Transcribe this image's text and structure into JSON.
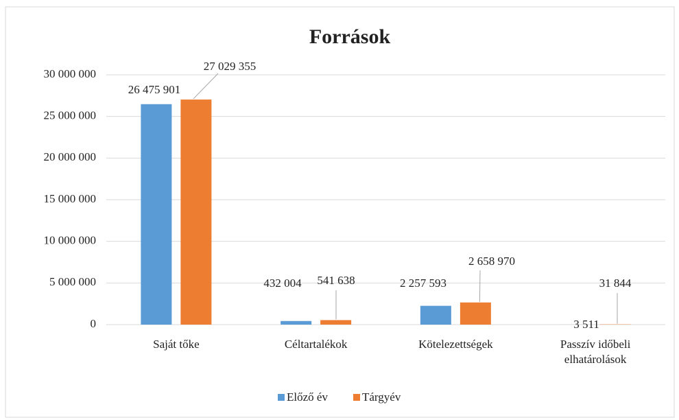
{
  "chart_data": {
    "type": "bar",
    "title": "Források",
    "categories": [
      "Saját tőke",
      "Céltartalékok",
      "Kötelezettségek",
      "Passzív időbeli elhatárolások"
    ],
    "series": [
      {
        "name": "Előző év",
        "color": "#5b9bd5",
        "values": [
          26475901,
          432004,
          2257593,
          3511
        ],
        "value_labels": [
          "26 475 901",
          "432 004",
          "2 257 593",
          "3 511"
        ]
      },
      {
        "name": "Tárgyév",
        "color": "#ed7d31",
        "values": [
          27029355,
          541638,
          2658970,
          31844
        ],
        "value_labels": [
          "27 029 355",
          "541 638",
          "2 658 970",
          "31 844"
        ]
      }
    ],
    "ylim": [
      0,
      30000000
    ],
    "yticks": [
      0,
      {
        "value": 5000000,
        "label": "5 000 000"
      },
      {
        "value": 10000000,
        "label": "10 000 000"
      },
      {
        "value": 15000000,
        "label": "15 000 000"
      },
      {
        "value": 20000000,
        "label": "20 000 000"
      },
      {
        "value": 25000000,
        "label": "25 000 000"
      },
      {
        "value": 30000000,
        "label": "30 000 000"
      }
    ],
    "grid": true,
    "legend": "bottom"
  }
}
